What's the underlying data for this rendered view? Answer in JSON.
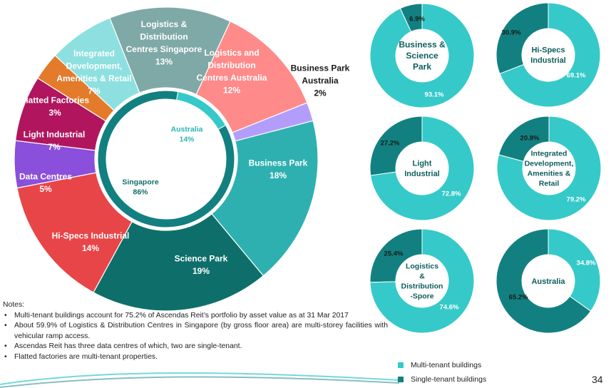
{
  "colors": {
    "multi_tenant": "#36c9c9",
    "single_tenant": "#128080",
    "inner_singapore": "#128080",
    "inner_australia": "#36c9c9"
  },
  "chart_data": [
    {
      "type": "pie",
      "variant": "donut",
      "slices": [
        {
          "label": [
            "Business Park",
            "Australia"
          ],
          "value": 2,
          "display": "2%",
          "color": "#b39dfb"
        },
        {
          "label": [
            "Business Park"
          ],
          "value": 18,
          "display": "18%",
          "color": "#2fb0b0"
        },
        {
          "label": [
            "Science Park"
          ],
          "value": 19,
          "display": "19%",
          "color": "#0e6f6a"
        },
        {
          "label": [
            "Hi-Specs Industrial"
          ],
          "value": 14,
          "display": "14%",
          "color": "#e84548"
        },
        {
          "label": [
            "Data Centres"
          ],
          "value": 5,
          "display": "5%",
          "color": "#8a4fdb"
        },
        {
          "label": [
            "Light Industrial"
          ],
          "value": 7,
          "display": "7%",
          "color": "#b0155e"
        },
        {
          "label": [
            "Flatted Factories"
          ],
          "value": 3,
          "display": "3%",
          "color": "#e37b2b"
        },
        {
          "label": [
            "Integrated",
            "Development,",
            "Amenities & Retail"
          ],
          "value": 7,
          "display": "7%",
          "color": "#8ee0e0"
        },
        {
          "label": [
            "Logistics &",
            "Distribution",
            "Centres Singapore"
          ],
          "value": 13,
          "display": "13%",
          "color": "#7fa9a6"
        },
        {
          "label": [
            "Logistics and",
            "Distribution",
            "Centres Australia"
          ],
          "value": 12,
          "display": "12%",
          "color": "#ff8a8a"
        }
      ]
    },
    {
      "type": "pie",
      "variant": "inner-ring",
      "slices": [
        {
          "label": "Australia",
          "value": 14,
          "display": "14%"
        },
        {
          "label": "Singapore",
          "value": 86,
          "display": "86%"
        }
      ]
    },
    {
      "type": "pie",
      "variant": "donut",
      "title": [
        "Business &",
        "Science",
        "Park"
      ],
      "multi": 93.1,
      "single": 6.9,
      "multi_label": "93.1%",
      "single_label": "6.9%"
    },
    {
      "type": "pie",
      "variant": "donut",
      "title": [
        "Hi-Specs",
        "Industrial"
      ],
      "multi": 69.1,
      "single": 30.9,
      "multi_label": "69.1%",
      "single_label": "30.9%"
    },
    {
      "type": "pie",
      "variant": "donut",
      "title": [
        "Light",
        "Industrial"
      ],
      "multi": 72.8,
      "single": 27.2,
      "multi_label": "72.8%",
      "single_label": "27.2%"
    },
    {
      "type": "pie",
      "variant": "donut",
      "title": [
        "Integrated",
        "Development,",
        "Amenities &",
        "Retail"
      ],
      "multi": 79.2,
      "single": 20.8,
      "multi_label": "79.2%",
      "single_label": "20.8%"
    },
    {
      "type": "pie",
      "variant": "donut",
      "title": [
        "Logistics",
        "&",
        "Distribution",
        "-Spore"
      ],
      "multi": 74.6,
      "single": 25.4,
      "multi_label": "74.6%",
      "single_label": "25.4%"
    },
    {
      "type": "pie",
      "variant": "donut",
      "title": [
        "Australia"
      ],
      "multi": 34.8,
      "single": 65.2,
      "multi_label": "34.8%",
      "single_label": "65.2%"
    }
  ],
  "notes": {
    "heading": "Notes:",
    "items": [
      "Multi-tenant buildings account for 75.2% of Ascendas Reit’s portfolio by asset value as at 31 Mar 2017",
      "About 59.9% of Logistics & Distribution Centres in Singapore (by gross floor area) are multi-storey facilities with vehicular ramp access.",
      "Ascendas Reit has three data centres of which, two are single-tenant.",
      "Flatted factories are multi-tenant properties."
    ]
  },
  "legend": {
    "multi": "Multi-tenant buildings",
    "single": "Single-tenant buildings"
  },
  "page_number": "34"
}
